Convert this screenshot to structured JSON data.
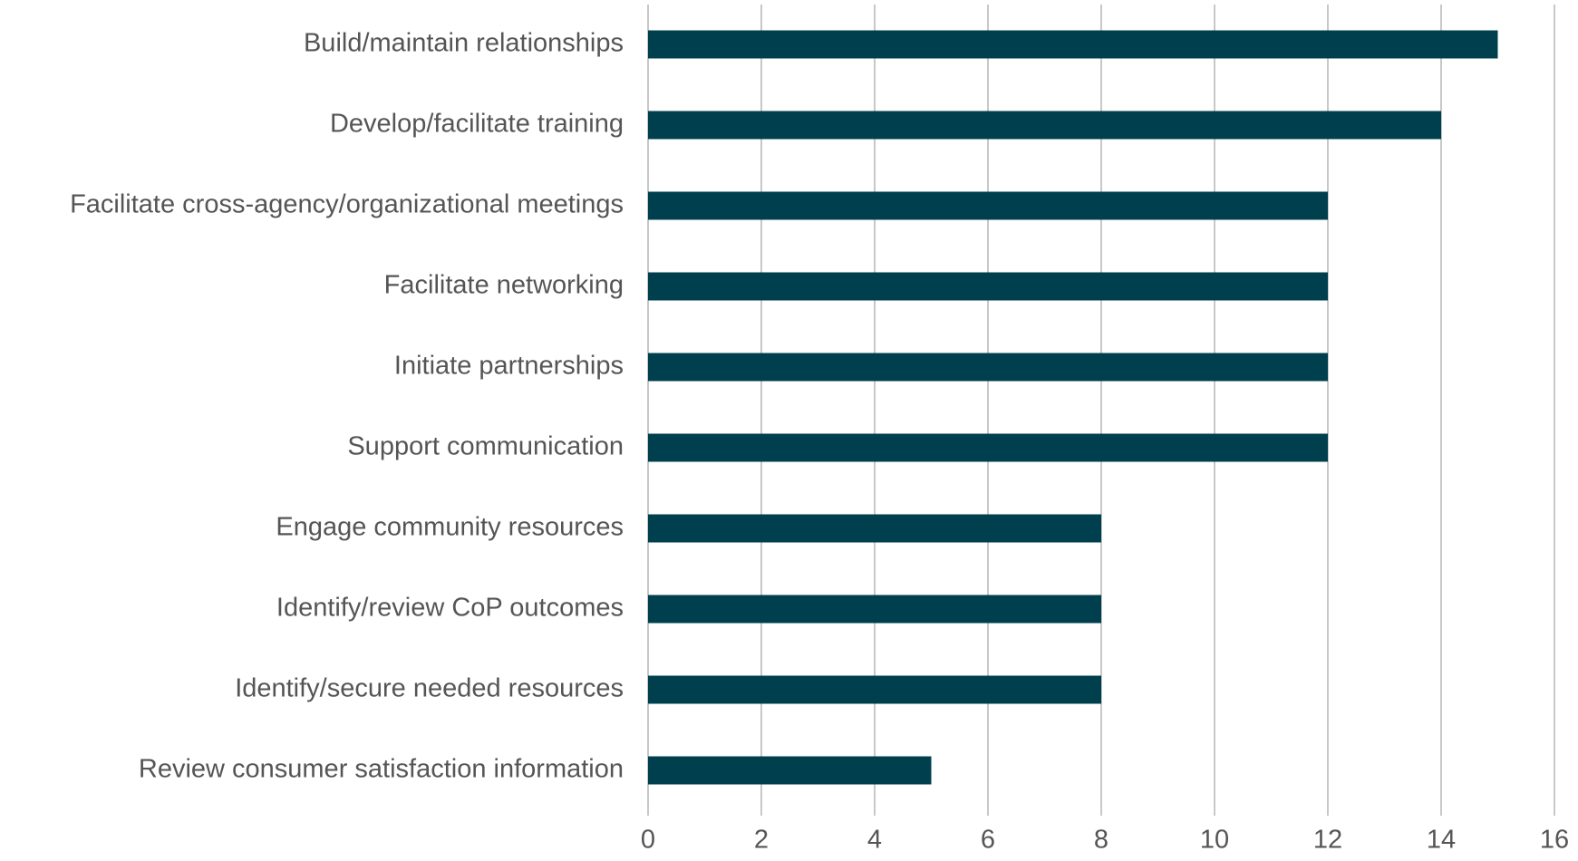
{
  "chart_data": {
    "type": "bar",
    "orientation": "horizontal",
    "categories": [
      "Build/maintain relationships",
      "Develop/facilitate training",
      "Facilitate cross-agency/organizational meetings",
      "Facilitate networking",
      "Initiate partnerships",
      "Support communication",
      "Engage community resources",
      "Identify/review CoP outcomes",
      "Identify/secure needed resources",
      "Review consumer satisfaction information"
    ],
    "values": [
      15,
      14,
      12,
      12,
      12,
      12,
      8,
      8,
      8,
      5
    ],
    "color": "#003f4d",
    "xlim": [
      0,
      16
    ],
    "xticks": [
      0,
      2,
      4,
      6,
      8,
      10,
      12,
      14,
      16
    ],
    "grid": true
  }
}
